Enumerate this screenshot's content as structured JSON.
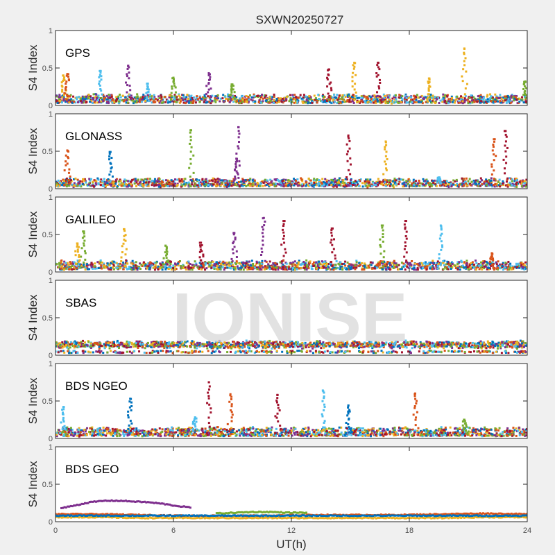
{
  "chart_data": {
    "type": "scatter",
    "title": "SXWN20250727",
    "xlabel": "UT(h)",
    "ylabel": "S4 Index",
    "xlim": [
      0,
      24
    ],
    "ylim": [
      0,
      1
    ],
    "xticks": [
      "0",
      "6",
      "12",
      "18",
      "24"
    ],
    "xtick_values": [
      0,
      6,
      12,
      18,
      24
    ],
    "yticks": [
      "0",
      "0.5",
      "1"
    ],
    "ytick_values": [
      0,
      0.5,
      1
    ],
    "watermark": "IONISE",
    "colors": [
      "#0072BD",
      "#D95319",
      "#EDB120",
      "#7E2F8E",
      "#77AC30",
      "#4DBEEE",
      "#A2142F"
    ],
    "panels": [
      {
        "label": "GPS",
        "baseline": 0.07,
        "peaks": [
          {
            "x": 0.4,
            "y": 0.4,
            "color": 2
          },
          {
            "x": 0.6,
            "y": 0.42,
            "color": 1
          },
          {
            "x": 2.3,
            "y": 0.46,
            "color": 5
          },
          {
            "x": 3.7,
            "y": 0.53,
            "color": 3
          },
          {
            "x": 4.7,
            "y": 0.29,
            "color": 5
          },
          {
            "x": 6.0,
            "y": 0.37,
            "color": 4
          },
          {
            "x": 7.8,
            "y": 0.43,
            "color": 3
          },
          {
            "x": 9.0,
            "y": 0.28,
            "color": 4
          },
          {
            "x": 13.9,
            "y": 0.48,
            "color": 6
          },
          {
            "x": 15.2,
            "y": 0.57,
            "color": 2
          },
          {
            "x": 16.4,
            "y": 0.57,
            "color": 6
          },
          {
            "x": 19.0,
            "y": 0.36,
            "color": 2
          },
          {
            "x": 20.8,
            "y": 0.76,
            "color": 2
          },
          {
            "x": 23.9,
            "y": 0.32,
            "color": 4
          }
        ]
      },
      {
        "label": "GLONASS",
        "baseline": 0.06,
        "peaks": [
          {
            "x": 0.6,
            "y": 0.51,
            "color": 1
          },
          {
            "x": 2.8,
            "y": 0.49,
            "color": 0
          },
          {
            "x": 6.9,
            "y": 0.78,
            "color": 4
          },
          {
            "x": 9.3,
            "y": 0.82,
            "color": 3
          },
          {
            "x": 9.2,
            "y": 0.4,
            "color": 3
          },
          {
            "x": 14.9,
            "y": 0.71,
            "color": 6
          },
          {
            "x": 16.8,
            "y": 0.63,
            "color": 2
          },
          {
            "x": 22.3,
            "y": 0.66,
            "color": 1
          },
          {
            "x": 22.9,
            "y": 0.77,
            "color": 6
          },
          {
            "x": 19.5,
            "y": 0.15,
            "color": 5
          }
        ]
      },
      {
        "label": "GALILEO",
        "baseline": 0.07,
        "peaks": [
          {
            "x": 1.4,
            "y": 0.54,
            "color": 4
          },
          {
            "x": 1.1,
            "y": 0.38,
            "color": 2
          },
          {
            "x": 3.5,
            "y": 0.57,
            "color": 2
          },
          {
            "x": 5.6,
            "y": 0.35,
            "color": 4
          },
          {
            "x": 7.4,
            "y": 0.39,
            "color": 6
          },
          {
            "x": 9.1,
            "y": 0.52,
            "color": 3
          },
          {
            "x": 10.6,
            "y": 0.72,
            "color": 3
          },
          {
            "x": 11.6,
            "y": 0.68,
            "color": 6
          },
          {
            "x": 14.1,
            "y": 0.58,
            "color": 6
          },
          {
            "x": 16.6,
            "y": 0.62,
            "color": 4
          },
          {
            "x": 17.8,
            "y": 0.68,
            "color": 6
          },
          {
            "x": 19.6,
            "y": 0.62,
            "color": 5
          },
          {
            "x": 22.2,
            "y": 0.25,
            "color": 1
          }
        ]
      },
      {
        "label": "SBAS",
        "baseline": 0.12,
        "peaks": []
      },
      {
        "label": "BDS NGEO",
        "baseline": 0.07,
        "peaks": [
          {
            "x": 0.4,
            "y": 0.42,
            "color": 5
          },
          {
            "x": 3.8,
            "y": 0.53,
            "color": 0
          },
          {
            "x": 7.1,
            "y": 0.28,
            "color": 5
          },
          {
            "x": 7.8,
            "y": 0.75,
            "color": 6
          },
          {
            "x": 8.9,
            "y": 0.59,
            "color": 1
          },
          {
            "x": 11.3,
            "y": 0.58,
            "color": 6
          },
          {
            "x": 13.6,
            "y": 0.64,
            "color": 5
          },
          {
            "x": 14.9,
            "y": 0.44,
            "color": 0
          },
          {
            "x": 18.3,
            "y": 0.6,
            "color": 1
          },
          {
            "x": 20.8,
            "y": 0.25,
            "color": 4
          }
        ]
      },
      {
        "label": "BDS GEO",
        "baseline": 0.08,
        "arcs": [
          {
            "color": 3,
            "x_start": 0.3,
            "x_end": 6.9,
            "y_values": [
              0.18,
              0.22,
              0.26,
              0.28,
              0.28,
              0.27,
              0.26,
              0.24,
              0.21,
              0.19
            ]
          },
          {
            "color": 4,
            "x_start": 8.2,
            "x_end": 12.8,
            "y_values": [
              0.11,
              0.12,
              0.13,
              0.13,
              0.12,
              0.12
            ]
          },
          {
            "color": 1,
            "x_start": 0.0,
            "x_end": 24.0,
            "y_values": [
              0.1,
              0.1,
              0.09,
              0.08,
              0.08,
              0.08,
              0.09,
              0.09,
              0.09,
              0.1,
              0.11,
              0.1
            ]
          },
          {
            "color": 2,
            "x_start": 0.0,
            "x_end": 24.0,
            "y_values": [
              0.06,
              0.06,
              0.05,
              0.05,
              0.05,
              0.05,
              0.05,
              0.05,
              0.05,
              0.05,
              0.06,
              0.06
            ]
          },
          {
            "color": 0,
            "x_start": 0.0,
            "x_end": 24.0,
            "y_values": [
              0.08,
              0.08,
              0.08,
              0.08,
              0.08,
              0.08,
              0.08,
              0.08,
              0.08,
              0.08,
              0.08,
              0.08
            ]
          }
        ],
        "peaks": []
      }
    ]
  }
}
